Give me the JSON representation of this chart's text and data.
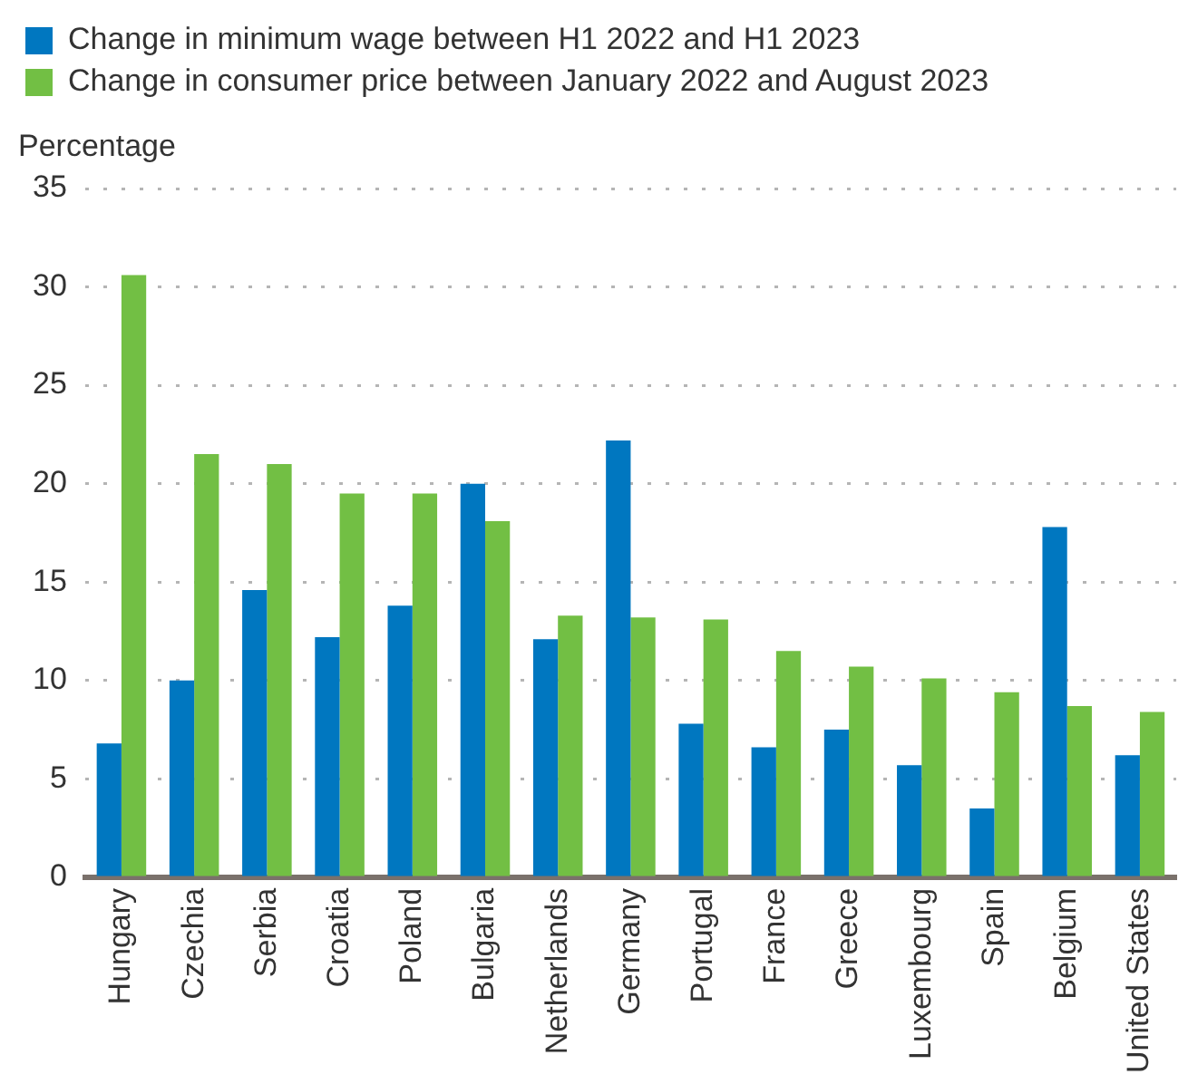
{
  "chart_data": {
    "type": "bar",
    "ylabel": "Percentage",
    "categories": [
      "Hungary",
      "Czechia",
      "Serbia",
      "Croatia",
      "Poland",
      "Bulgaria",
      "Netherlands",
      "Germany",
      "Portugal",
      "France",
      "Greece",
      "Luxembourg",
      "Spain",
      "Belgium",
      "United States"
    ],
    "series": [
      {
        "name": "Change in minimum wage between H1 2022 and H1 2023",
        "color": "#0077c0",
        "values": [
          6.8,
          10.0,
          14.6,
          12.2,
          13.8,
          20.0,
          12.1,
          22.2,
          7.8,
          6.6,
          7.5,
          5.7,
          3.5,
          17.8,
          6.2
        ]
      },
      {
        "name": "Change in consumer price between January 2022 and August 2023",
        "color": "#72bf44",
        "values": [
          30.6,
          21.5,
          21.0,
          19.5,
          19.5,
          18.1,
          13.3,
          13.2,
          13.1,
          11.5,
          10.7,
          10.1,
          9.4,
          8.7,
          8.4
        ]
      }
    ],
    "ylim": [
      0,
      35
    ],
    "yticks": [
      0,
      5,
      10,
      15,
      20,
      25,
      30,
      35
    ],
    "grid": "y",
    "legend": "top left"
  }
}
